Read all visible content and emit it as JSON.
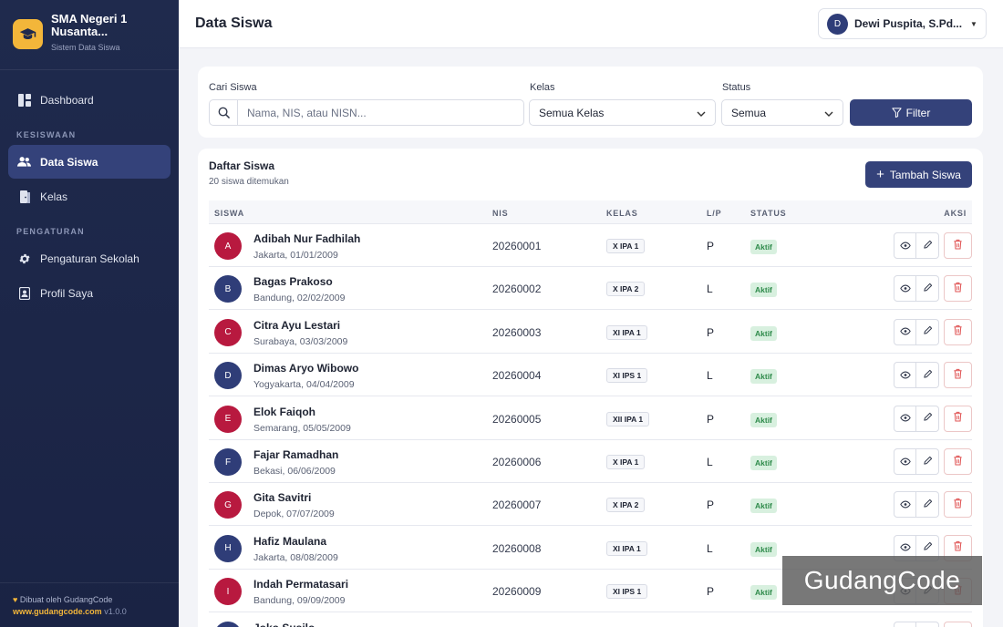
{
  "school": {
    "name": "SMA Negeri 1 Nusanta...",
    "subtitle": "Sistem Data Siswa"
  },
  "nav": {
    "dashboard": "Dashboard",
    "section_kesiswaan": "KESISWAAN",
    "data_siswa": "Data Siswa",
    "kelas": "Kelas",
    "section_pengaturan": "PENGATURAN",
    "pengaturan_sekolah": "Pengaturan Sekolah",
    "profil_saya": "Profil Saya"
  },
  "footer": {
    "credit": "Dibuat oleh GudangCode",
    "link": "www.gudangcode.com",
    "version": "v1.0.0"
  },
  "header": {
    "title": "Data Siswa",
    "user_initial": "D",
    "user_name": "Dewi Puspita, S.Pd..."
  },
  "filter": {
    "search_label": "Cari Siswa",
    "search_placeholder": "Nama, NIS, atau NISN...",
    "class_label": "Kelas",
    "class_value": "Semua Kelas",
    "status_label": "Status",
    "status_value": "Semua",
    "button": "Filter"
  },
  "list": {
    "title": "Daftar Siswa",
    "count_text": "20 siswa ditemukan",
    "add_button": "Tambah Siswa",
    "columns": {
      "student": "SISWA",
      "nis": "NIS",
      "class": "KELAS",
      "gender": "L/P",
      "status": "STATUS",
      "actions": "AKSI"
    },
    "rows": [
      {
        "initial": "A",
        "name": "Adibah Nur Fadhilah",
        "birth": "Jakarta, 01/01/2009",
        "nis": "20260001",
        "class": "X IPA 1",
        "gender": "P",
        "status": "Aktif",
        "avatar_color": "#b8193f"
      },
      {
        "initial": "B",
        "name": "Bagas Prakoso",
        "birth": "Bandung, 02/02/2009",
        "nis": "20260002",
        "class": "X IPA 2",
        "gender": "L",
        "status": "Aktif",
        "avatar_color": "#2f3d78"
      },
      {
        "initial": "C",
        "name": "Citra Ayu Lestari",
        "birth": "Surabaya, 03/03/2009",
        "nis": "20260003",
        "class": "XI IPA 1",
        "gender": "P",
        "status": "Aktif",
        "avatar_color": "#b8193f"
      },
      {
        "initial": "D",
        "name": "Dimas Aryo Wibowo",
        "birth": "Yogyakarta, 04/04/2009",
        "nis": "20260004",
        "class": "XI IPS 1",
        "gender": "L",
        "status": "Aktif",
        "avatar_color": "#2f3d78"
      },
      {
        "initial": "E",
        "name": "Elok Faiqoh",
        "birth": "Semarang, 05/05/2009",
        "nis": "20260005",
        "class": "XII IPA 1",
        "gender": "P",
        "status": "Aktif",
        "avatar_color": "#b8193f"
      },
      {
        "initial": "F",
        "name": "Fajar Ramadhan",
        "birth": "Bekasi, 06/06/2009",
        "nis": "20260006",
        "class": "X IPA 1",
        "gender": "L",
        "status": "Aktif",
        "avatar_color": "#2f3d78"
      },
      {
        "initial": "G",
        "name": "Gita Savitri",
        "birth": "Depok, 07/07/2009",
        "nis": "20260007",
        "class": "X IPA 2",
        "gender": "P",
        "status": "Aktif",
        "avatar_color": "#b8193f"
      },
      {
        "initial": "H",
        "name": "Hafiz Maulana",
        "birth": "Jakarta, 08/08/2009",
        "nis": "20260008",
        "class": "XI IPA 1",
        "gender": "L",
        "status": "Aktif",
        "avatar_color": "#2f3d78"
      },
      {
        "initial": "I",
        "name": "Indah Permatasari",
        "birth": "Bandung, 09/09/2009",
        "nis": "20260009",
        "class": "XI IPS 1",
        "gender": "P",
        "status": "Aktif",
        "avatar_color": "#b8193f"
      },
      {
        "initial": "J",
        "name": "Joko Susilo",
        "birth": "",
        "nis": "",
        "class": "",
        "gender": "",
        "status": "",
        "avatar_color": "#2f3d78"
      }
    ]
  },
  "watermark": "GudangCode"
}
